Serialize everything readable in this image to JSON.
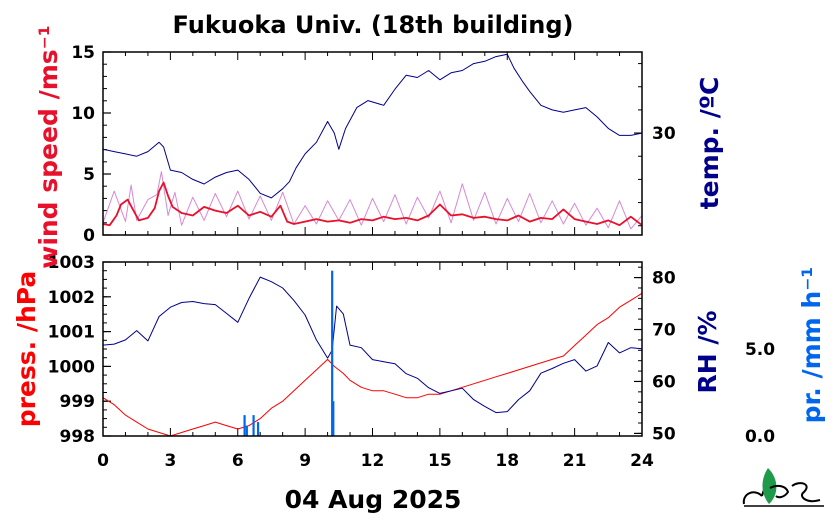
{
  "title": "Fukuoka Univ. (18th building)",
  "date_label": "04 Aug 2025",
  "colors": {
    "wind": "#e8102a",
    "wind_fine": "#d68ad6",
    "temp": "#00008b",
    "press": "#ff0000",
    "rh": "#00008b",
    "precip": "#0066ee",
    "logo_green": "#1e9a4a"
  },
  "chart_data": [
    {
      "type": "line",
      "panel": "top",
      "xlim": [
        0,
        24
      ],
      "x_ticks": [
        "0",
        "3",
        "6",
        "9",
        "12",
        "15",
        "18",
        "21",
        "24"
      ],
      "left_axis": {
        "label": "wind speed /ms⁻¹",
        "ylim": [
          0,
          15
        ],
        "ticks": [
          "0",
          "5",
          "10",
          "15"
        ]
      },
      "right_axis": {
        "label": "temp. /ºC",
        "ylim": [
          25.6,
          33.5
        ],
        "ticks": [
          "30"
        ]
      },
      "series": [
        {
          "axis": "left",
          "style": "fine",
          "x": [
            0,
            0.5,
            1,
            1.25,
            1.5,
            2,
            2.4,
            2.6,
            2.9,
            3.2,
            3.5,
            4,
            4.5,
            5,
            5.5,
            6,
            6.5,
            7,
            7.5,
            8,
            8.5,
            9,
            9.5,
            10,
            10.5,
            11,
            11.5,
            12,
            12.5,
            13,
            13.5,
            14,
            14.5,
            15,
            15.5,
            16,
            16.5,
            17,
            17.5,
            18,
            18.5,
            19,
            19.5,
            20,
            20.5,
            21,
            21.5,
            22,
            22.5,
            23,
            23.5,
            24
          ],
          "y": [
            1.0,
            3.6,
            1.1,
            4.1,
            1.2,
            2.9,
            3.3,
            5.2,
            1.6,
            3.5,
            0.8,
            3.1,
            1.2,
            3.4,
            1.5,
            3.6,
            1.3,
            3.2,
            1.2,
            3.5,
            0.9,
            2.4,
            0.9,
            2.8,
            1.2,
            2.9,
            0.8,
            3.0,
            1.1,
            3.3,
            0.9,
            3.1,
            1.4,
            3.6,
            1.0,
            4.2,
            1.2,
            3.5,
            0.9,
            3.0,
            1.1,
            3.4,
            1.0,
            2.8,
            0.9,
            2.6,
            0.8,
            2.2,
            0.6,
            2.8,
            0.5,
            1.6
          ]
        },
        {
          "axis": "left",
          "style": "mean",
          "x": [
            0,
            0.3,
            0.6,
            0.8,
            1.1,
            1.3,
            1.6,
            2.0,
            2.3,
            2.5,
            2.7,
            2.9,
            3.1,
            3.5,
            4.0,
            4.5,
            5.0,
            5.5,
            6.0,
            6.5,
            7.0,
            7.5,
            7.9,
            8.2,
            8.5,
            9.0,
            9.5,
            10.0,
            10.5,
            11.0,
            11.5,
            12.0,
            12.5,
            13.0,
            13.5,
            14.0,
            14.5,
            15.0,
            15.5,
            16.0,
            16.5,
            17.0,
            17.5,
            18.0,
            18.5,
            19.0,
            19.5,
            20.0,
            20.5,
            21.0,
            21.5,
            22.0,
            22.5,
            23.0,
            23.5,
            24.0
          ],
          "y": [
            0.9,
            0.8,
            1.6,
            2.5,
            2.9,
            2.2,
            1.2,
            1.4,
            2.2,
            3.6,
            4.3,
            3.2,
            2.3,
            1.8,
            1.6,
            2.3,
            2.0,
            1.8,
            2.4,
            1.6,
            1.9,
            1.5,
            2.4,
            1.1,
            0.9,
            1.1,
            1.3,
            1.1,
            1.2,
            1.0,
            1.3,
            1.2,
            1.5,
            1.3,
            1.4,
            1.2,
            1.6,
            2.5,
            1.6,
            1.7,
            1.4,
            1.5,
            1.3,
            1.2,
            1.6,
            1.1,
            1.4,
            1.3,
            2.1,
            1.3,
            1.1,
            0.9,
            1.2,
            0.8,
            1.5,
            0.8
          ]
        },
        {
          "axis": "right",
          "style": "temp",
          "x": [
            0,
            0.5,
            1,
            1.5,
            2,
            2.5,
            2.7,
            3,
            3.5,
            4,
            4.5,
            5,
            5.5,
            6,
            6.5,
            7,
            7.5,
            8,
            8.3,
            8.6,
            9,
            9.5,
            10,
            10.3,
            10.5,
            10.8,
            11.3,
            11.8,
            12.5,
            13,
            13.5,
            14,
            14.5,
            15,
            15.5,
            16,
            16.5,
            17,
            17.5,
            18,
            18.3,
            18.7,
            19,
            19.5,
            20,
            20.5,
            21,
            21.5,
            22,
            22.5,
            23,
            23.5,
            24
          ],
          "y": [
            29.3,
            29.2,
            29.1,
            29.0,
            29.2,
            29.6,
            29.4,
            28.4,
            28.3,
            28.0,
            27.8,
            28.1,
            28.3,
            28.4,
            28.0,
            27.4,
            27.2,
            27.6,
            27.9,
            28.5,
            29.1,
            29.6,
            30.5,
            30.0,
            29.3,
            30.2,
            31.1,
            31.4,
            31.2,
            31.9,
            32.5,
            32.4,
            32.7,
            32.3,
            32.6,
            32.7,
            33.0,
            33.1,
            33.3,
            33.4,
            32.8,
            32.2,
            31.8,
            31.2,
            31.0,
            30.9,
            31.0,
            31.1,
            30.7,
            30.2,
            29.9,
            29.9,
            30.0
          ]
        }
      ]
    },
    {
      "type": "line",
      "panel": "bottom",
      "xlim": [
        0,
        24
      ],
      "x_ticks": [
        "0",
        "3",
        "6",
        "9",
        "12",
        "15",
        "18",
        "21",
        "24"
      ],
      "left_axis": {
        "label": "press. /hPa",
        "ylim": [
          998,
          1003
        ],
        "ticks": [
          "998",
          "999",
          "1000",
          "1001",
          "1002",
          "1003"
        ]
      },
      "right_axis": {
        "label": "RH /%",
        "ylim": [
          49.5,
          83
        ],
        "ticks": [
          "50",
          "60",
          "70",
          "80"
        ]
      },
      "precip_axis": {
        "label": "pr. /mm h⁻¹",
        "ylim": [
          0,
          10
        ],
        "ticks": [
          "0.0",
          "5.0"
        ]
      },
      "series": [
        {
          "axis": "left",
          "style": "press",
          "x": [
            0,
            0.5,
            1,
            1.5,
            2,
            2.5,
            3,
            3.5,
            4,
            4.5,
            5,
            5.5,
            6,
            6.5,
            7,
            7.5,
            8,
            8.5,
            9,
            9.5,
            10,
            10.3,
            10.7,
            11,
            11.5,
            12,
            12.5,
            13,
            13.5,
            14,
            14.5,
            15,
            15.5,
            16,
            16.5,
            17,
            17.5,
            18,
            18.5,
            19,
            19.5,
            20,
            20.5,
            21,
            21.5,
            22,
            22.5,
            23,
            23.5,
            24
          ],
          "y": [
            999.1,
            998.9,
            998.6,
            998.4,
            998.2,
            998.1,
            998.0,
            998.1,
            998.2,
            998.3,
            998.4,
            998.3,
            998.2,
            998.3,
            998.5,
            998.8,
            999.0,
            999.3,
            999.6,
            999.9,
            1000.2,
            1000.0,
            999.8,
            999.6,
            999.4,
            999.3,
            999.3,
            999.2,
            999.1,
            999.1,
            999.2,
            999.2,
            999.3,
            999.4,
            999.5,
            999.6,
            999.7,
            999.8,
            999.9,
            1000.0,
            1000.1,
            1000.2,
            1000.3,
            1000.6,
            1000.9,
            1001.2,
            1001.4,
            1001.7,
            1001.9,
            1002.1
          ]
        },
        {
          "axis": "right",
          "style": "rh",
          "x": [
            0,
            0.5,
            1,
            1.5,
            2,
            2.5,
            3,
            3.5,
            4,
            4.5,
            5,
            5.5,
            6,
            6.5,
            7,
            7.5,
            8,
            8.5,
            9,
            9.5,
            10,
            10.2,
            10.4,
            10.7,
            11,
            11.5,
            12,
            12.5,
            13,
            13.5,
            14,
            14.5,
            15,
            15.5,
            16,
            16.5,
            17,
            17.5,
            18,
            18.5,
            19,
            19.5,
            20,
            20.5,
            21,
            21.5,
            22,
            22.5,
            23,
            23.5,
            24
          ],
          "y": [
            67.0,
            67.2,
            68.0,
            69.8,
            67.8,
            72.5,
            74.3,
            75.2,
            75.4,
            75.0,
            74.8,
            73.1,
            71.4,
            76.0,
            80.1,
            79.2,
            78.0,
            75.6,
            72.8,
            68.0,
            64.5,
            66.0,
            74.5,
            73.0,
            67.0,
            66.5,
            64.2,
            63.8,
            63.4,
            61.5,
            60.6,
            58.8,
            57.7,
            58.2,
            58.7,
            56.5,
            55.2,
            54.0,
            54.2,
            56.5,
            58.2,
            61.6,
            62.5,
            63.5,
            64.2,
            62.0,
            63.0,
            67.5,
            65.5,
            66.5,
            66.3
          ]
        },
        {
          "axis": "precip",
          "style": "precip",
          "x": [
            6.3,
            6.4,
            6.7,
            6.9,
            10.2,
            10.25
          ],
          "y": [
            1.2,
            0.6,
            1.2,
            0.8,
            9.5,
            2.0
          ]
        }
      ]
    }
  ]
}
